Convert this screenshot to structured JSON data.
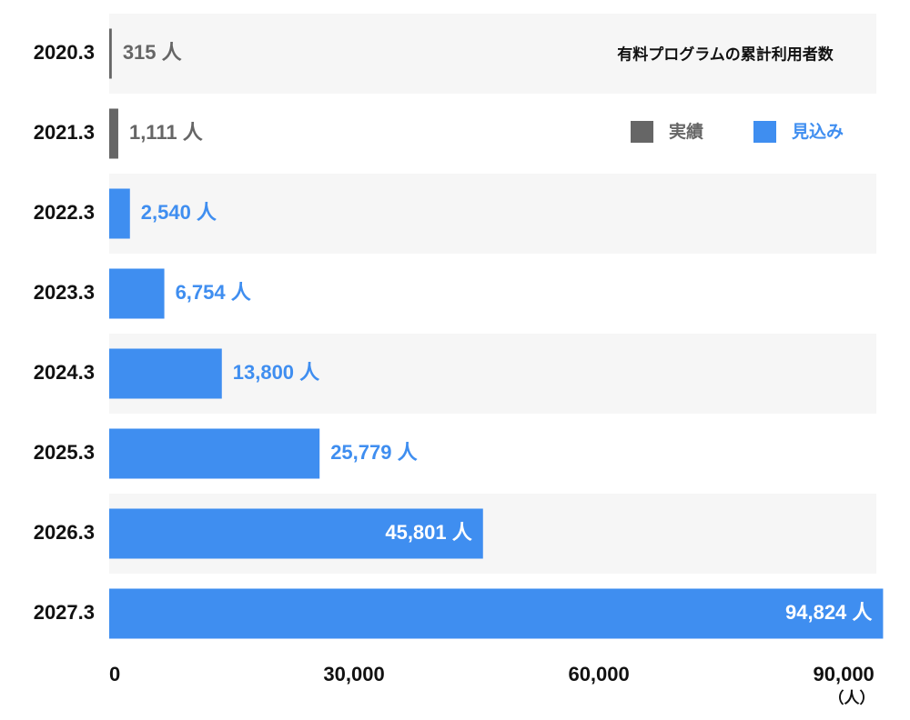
{
  "chart_data": {
    "type": "hbar",
    "title": "有料プログラムの累計利用者数",
    "x_unit": "（人）",
    "categories": [
      "2020.3",
      "2021.3",
      "2022.3",
      "2023.3",
      "2024.3",
      "2025.3",
      "2026.3",
      "2027.3"
    ],
    "series": [
      {
        "name": "実績",
        "color": "#666666",
        "values": [
          315,
          1111,
          null,
          null,
          null,
          null,
          null,
          null
        ],
        "value_labels": [
          "315 人",
          "1,111 人",
          null,
          null,
          null,
          null,
          null,
          null
        ]
      },
      {
        "name": "見込み",
        "color": "#3f8ef0",
        "values": [
          null,
          null,
          2540,
          6754,
          13800,
          25779,
          45801,
          94824
        ],
        "value_labels": [
          null,
          null,
          "2,540 人",
          "6,754 人",
          "13,800 人",
          "25,779 人",
          "45,801 人",
          "94,824 人"
        ]
      }
    ],
    "xlim": [
      0,
      95000
    ],
    "xticks": [
      0,
      {
        "value": 30000,
        "label": "30,000"
      },
      {
        "value": 60000,
        "label": "60,000"
      },
      {
        "value": 90000,
        "label": "90,000"
      }
    ],
    "grid": false,
    "legend": "top-right"
  }
}
